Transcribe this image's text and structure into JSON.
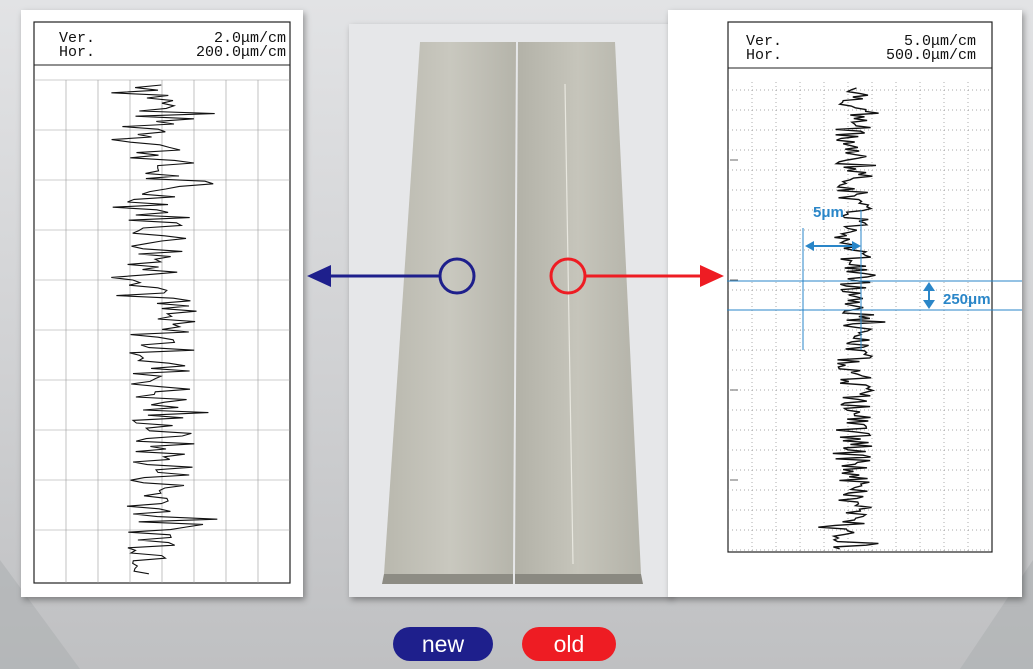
{
  "left_chart": {
    "ver_label": "Ver.",
    "hor_label": "Hor.",
    "ver_value": "2.0μm/cm",
    "hor_value": "200.0μm/cm"
  },
  "right_chart": {
    "ver_label": "Ver.",
    "hor_label": "Hor.",
    "ver_value": "5.0μm/cm",
    "hor_value": "500.0μm/cm",
    "annotation_horizontal": "5μm",
    "annotation_vertical": "250μm"
  },
  "legend": {
    "new_label": "new",
    "old_label": "old"
  },
  "colors": {
    "new": "#1e1f8c",
    "old": "#ee1c23",
    "annotation": "#2a86c8"
  }
}
